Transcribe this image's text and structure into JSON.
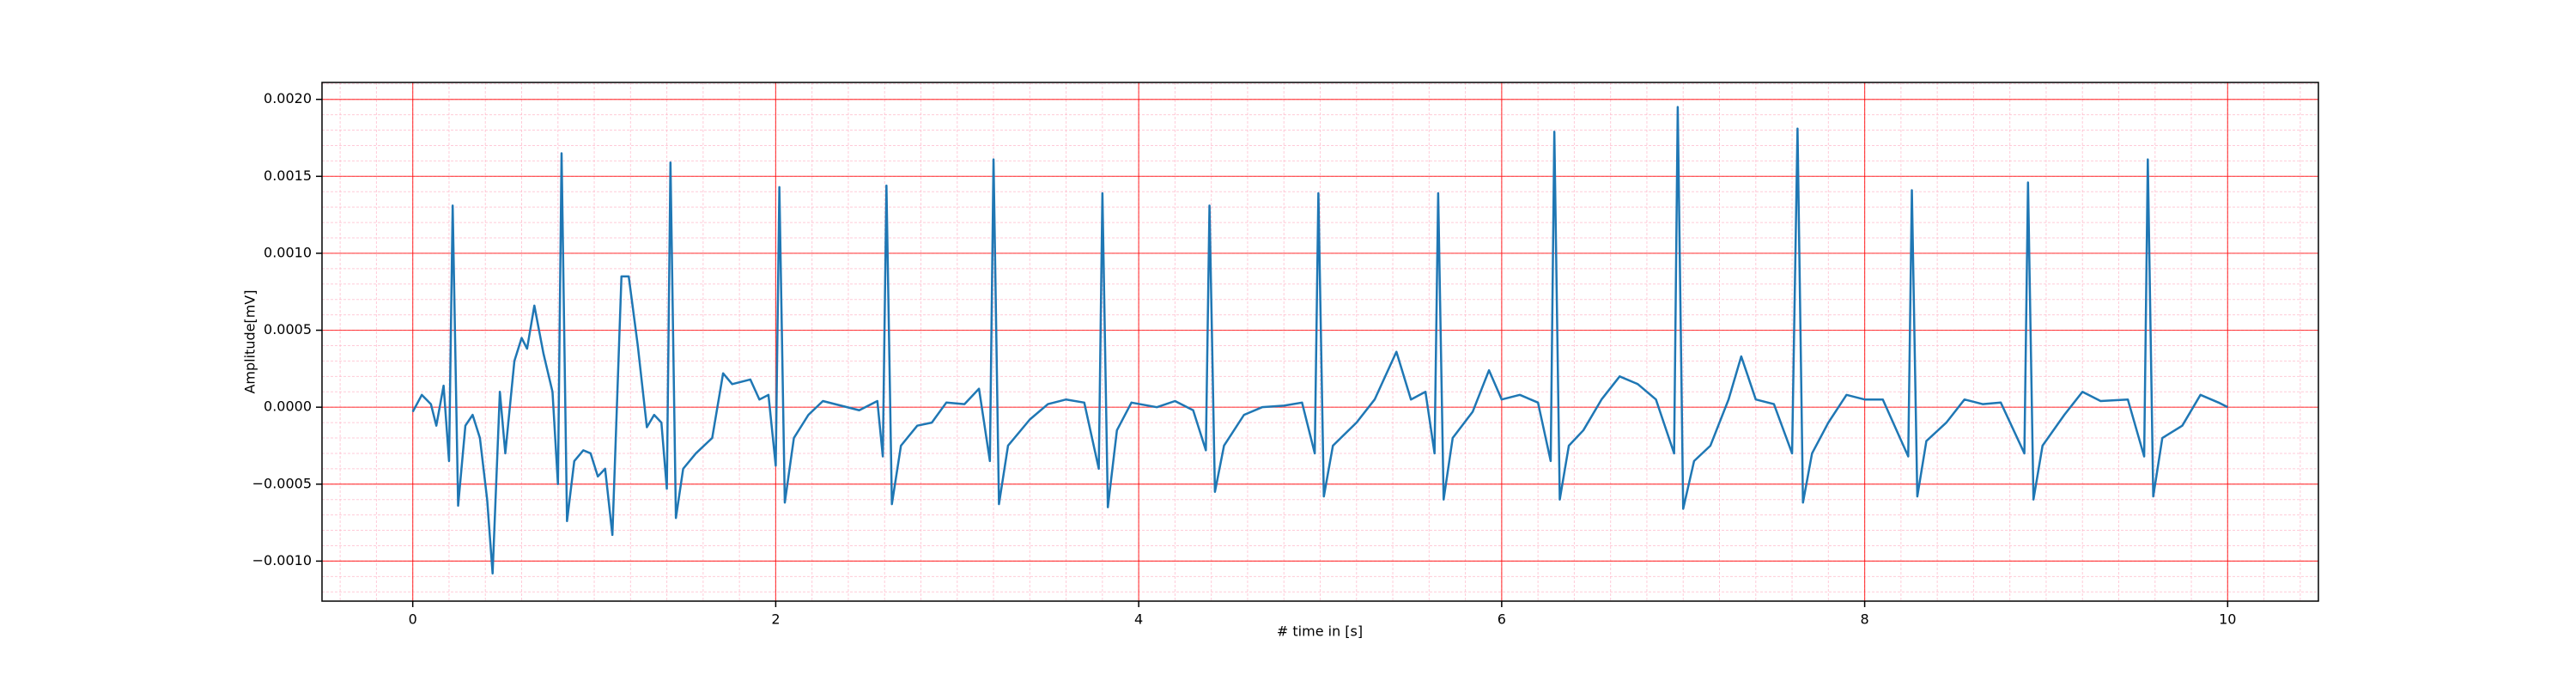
{
  "chart_data": {
    "type": "line",
    "xlabel": "# time in [s]",
    "ylabel": "Amplitude[mV]",
    "x": [
      0.0,
      0.05,
      0.1,
      0.13,
      0.17,
      0.2,
      0.22,
      0.25,
      0.29,
      0.33,
      0.37,
      0.41,
      0.44,
      0.48,
      0.51,
      0.56,
      0.6,
      0.63,
      0.67,
      0.72,
      0.77,
      0.8,
      0.82,
      0.85,
      0.89,
      0.94,
      0.98,
      1.02,
      1.06,
      1.1,
      1.15,
      1.19,
      1.24,
      1.29,
      1.33,
      1.37,
      1.4,
      1.42,
      1.45,
      1.49,
      1.56,
      1.65,
      1.71,
      1.76,
      1.86,
      1.91,
      1.96,
      2.0,
      2.02,
      2.05,
      2.1,
      2.18,
      2.26,
      2.36,
      2.46,
      2.56,
      2.59,
      2.61,
      2.64,
      2.69,
      2.78,
      2.86,
      2.94,
      3.04,
      3.12,
      3.18,
      3.2,
      3.23,
      3.28,
      3.4,
      3.5,
      3.6,
      3.7,
      3.78,
      3.8,
      3.83,
      3.88,
      3.96,
      4.1,
      4.2,
      4.3,
      4.37,
      4.39,
      4.42,
      4.47,
      4.58,
      4.68,
      4.8,
      4.9,
      4.97,
      4.99,
      5.02,
      5.07,
      5.2,
      5.3,
      5.42,
      5.5,
      5.58,
      5.63,
      5.65,
      5.68,
      5.73,
      5.84,
      5.93,
      6.0,
      6.1,
      6.2,
      6.27,
      6.29,
      6.32,
      6.37,
      6.45,
      6.55,
      6.65,
      6.75,
      6.85,
      6.95,
      6.97,
      7.0,
      7.06,
      7.15,
      7.25,
      7.32,
      7.4,
      7.5,
      7.6,
      7.63,
      7.66,
      7.71,
      7.8,
      7.9,
      8.0,
      8.1,
      8.24,
      8.26,
      8.29,
      8.34,
      8.45,
      8.55,
      8.65,
      8.75,
      8.88,
      8.9,
      8.93,
      8.98,
      9.1,
      9.2,
      9.3,
      9.45,
      9.54,
      9.56,
      9.59,
      9.64,
      9.75,
      9.85,
      9.95,
      10.0
    ],
    "series": [
      {
        "color": "#1f77b4",
        "values": [
          -3e-05,
          8e-05,
          2e-05,
          -0.00012,
          0.00014,
          -0.00035,
          0.00131,
          -0.00064,
          -0.00012,
          -5e-05,
          -0.0002,
          -0.0006,
          -0.00108,
          0.0001,
          -0.0003,
          0.0003,
          0.00045,
          0.00038,
          0.00066,
          0.00035,
          0.0001,
          -0.0005,
          0.00165,
          -0.00074,
          -0.00035,
          -0.00028,
          -0.0003,
          -0.00045,
          -0.0004,
          -0.00083,
          0.00085,
          0.00085,
          0.0004,
          -0.00013,
          -5e-05,
          -0.0001,
          -0.00053,
          0.00159,
          -0.00072,
          -0.0004,
          -0.0003,
          -0.0002,
          0.00022,
          0.00015,
          0.00018,
          5e-05,
          8e-05,
          -0.00038,
          0.00143,
          -0.00062,
          -0.0002,
          -5e-05,
          4e-05,
          1e-05,
          -2e-05,
          4e-05,
          -0.00032,
          0.00144,
          -0.00063,
          -0.00025,
          -0.00012,
          -0.0001,
          3e-05,
          2e-05,
          0.00012,
          -0.00035,
          0.00161,
          -0.00063,
          -0.00025,
          -8e-05,
          2e-05,
          5e-05,
          3e-05,
          -0.0004,
          0.00139,
          -0.00065,
          -0.00015,
          3e-05,
          0.0,
          4e-05,
          -2e-05,
          -0.00028,
          0.00131,
          -0.00055,
          -0.00025,
          -5e-05,
          0.0,
          1e-05,
          3e-05,
          -0.0003,
          0.00139,
          -0.00058,
          -0.00025,
          -0.0001,
          5e-05,
          0.00036,
          5e-05,
          0.0001,
          -0.0003,
          0.00139,
          -0.0006,
          -0.0002,
          -3e-05,
          0.00024,
          5e-05,
          8e-05,
          3e-05,
          -0.00035,
          0.00179,
          -0.0006,
          -0.00025,
          -0.00015,
          5e-05,
          0.0002,
          0.00015,
          5e-05,
          -0.0003,
          0.00195,
          -0.00066,
          -0.00035,
          -0.00025,
          5e-05,
          0.00033,
          5e-05,
          2e-05,
          -0.0003,
          0.00181,
          -0.00062,
          -0.0003,
          -0.0001,
          8e-05,
          5e-05,
          5e-05,
          -0.00032,
          0.00141,
          -0.00058,
          -0.00022,
          -0.0001,
          5e-05,
          2e-05,
          3e-05,
          -0.0003,
          0.00146,
          -0.0006,
          -0.00025,
          -5e-05,
          0.0001,
          4e-05,
          5e-05,
          -0.00032,
          0.00161,
          -0.00058,
          -0.0002,
          -0.00012,
          8e-05,
          3e-05,
          0.0
        ]
      }
    ],
    "xlim": [
      -0.5,
      10.5
    ],
    "ylim": [
      -0.00126,
      0.00211
    ],
    "xticks": [
      0,
      2,
      4,
      6,
      8,
      10
    ],
    "yticks": [
      {
        "value": 0.002,
        "label": "0.0020"
      },
      {
        "value": 0.0015,
        "label": "0.0015"
      },
      {
        "value": 0.001,
        "label": "0.0010"
      },
      {
        "value": 0.0005,
        "label": "0.0005"
      },
      {
        "value": 0,
        "label": "0.0000"
      },
      {
        "value": -0.0005,
        "label": "−0.0005"
      },
      {
        "value": -0.001,
        "label": "−0.0010"
      }
    ],
    "grid": true,
    "grid_color": "#ff0000",
    "minor_grid_color": "#ffb6c8",
    "minor_xstep": 0.2,
    "minor_ystep": 0.0001
  }
}
